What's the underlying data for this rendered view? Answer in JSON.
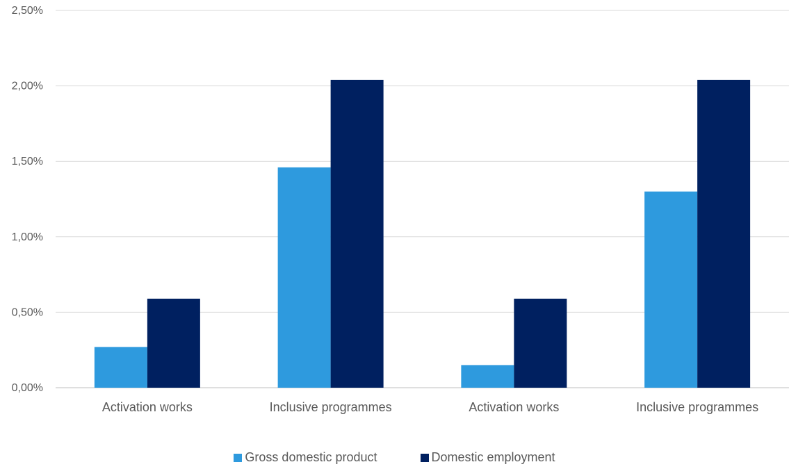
{
  "chart_data": {
    "type": "bar",
    "categories": [
      "Activation works",
      "Inclusive programmes",
      "Activation works",
      "Inclusive programmes"
    ],
    "series": [
      {
        "name": "Gross domestic product",
        "values": [
          0.27,
          1.46,
          0.15,
          1.3
        ],
        "color": "#2e9ade"
      },
      {
        "name": "Domestic employment",
        "values": [
          0.59,
          2.04,
          0.59,
          2.04
        ],
        "color": "#002060"
      }
    ],
    "ylim": [
      0,
      2.5
    ],
    "yticks": [
      "0,00%",
      "0,50%",
      "1,00%",
      "1,50%",
      "2,00%",
      "2,50%"
    ],
    "grid": true,
    "legend_position": "bottom",
    "title": "",
    "xlabel": "",
    "ylabel": ""
  }
}
